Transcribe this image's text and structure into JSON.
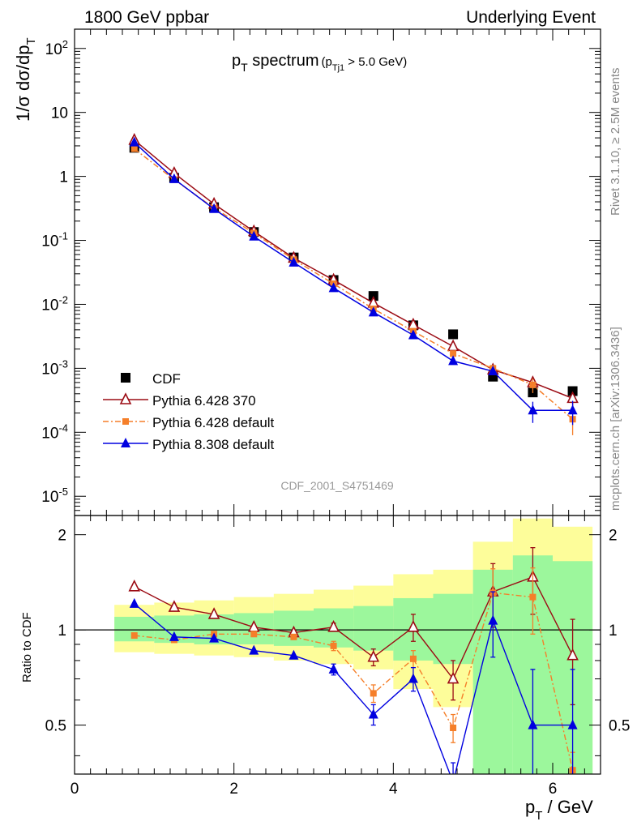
{
  "header": {
    "left": "1800 GeV ppbar",
    "right": "Underlying Event"
  },
  "side_labels": {
    "rivet": "Rivet 3.1.10, ≥ 2.5M events",
    "mcplots": "mcplots.cern.ch [arXiv:1306.3436]"
  },
  "analysis_id": "CDF_2001_S4751469",
  "title": {
    "main": "p",
    "main_sub": "T",
    "main_rest": " spectrum",
    "cut_open": "(p",
    "cut_sub": "Tj1",
    "cut_rest": " > 5.0 GeV)"
  },
  "axes": {
    "ylabel_top": "1/σ dσ/dp",
    "ylabel_top_sub": "T",
    "ylabel_bottom": "Ratio to CDF",
    "xlabel": "p",
    "xlabel_sub": "T",
    "xlabel_rest": " / GeV"
  },
  "colors": {
    "data": "#000000",
    "py6_370": "#9b0b14",
    "py6_default": "#f57f2a",
    "py8": "#0000e0",
    "band_inner": "#9cf79c",
    "band_outer": "#fdfd9a"
  },
  "chart_data": [
    {
      "type": "scatter",
      "yscale": "log",
      "xlim": [
        0,
        6.6
      ],
      "ylim": [
        5e-06,
        200
      ],
      "x_ticks": [
        "0",
        "2",
        "4",
        "6"
      ],
      "y_ticks": [
        "10^-5",
        "10^-4",
        "10^-3",
        "10^-2",
        "10^-1",
        "1",
        "10",
        "10^2"
      ],
      "x": [
        0.75,
        1.25,
        1.75,
        2.25,
        2.75,
        3.25,
        3.75,
        4.25,
        4.75,
        5.25,
        5.75,
        6.25
      ],
      "series": [
        {
          "name": "CDF",
          "marker": "square",
          "values": [
            2.8,
            0.95,
            0.33,
            0.135,
            0.054,
            0.024,
            0.0135,
            0.0047,
            0.0034,
            0.00074,
            0.00042,
            0.00044
          ]
        },
        {
          "name": "Pythia 6.428 370",
          "marker": "triangle-open",
          "values": [
            3.7,
            1.12,
            0.37,
            0.138,
            0.053,
            0.024,
            0.0105,
            0.0048,
            0.0022,
            0.00095,
            0.0006,
            0.00034
          ],
          "errors": [
            0,
            0,
            0,
            0,
            0,
            0,
            0,
            0,
            0,
            8e-05,
            0.0001,
            8e-05
          ]
        },
        {
          "name": "Pythia 6.428 default",
          "marker": "square-small",
          "values": [
            2.7,
            0.89,
            0.32,
            0.13,
            0.05,
            0.021,
            0.0085,
            0.0038,
            0.0017,
            0.001,
            0.00055,
            0.00016
          ],
          "errors": [
            0,
            0,
            0,
            0,
            0,
            0,
            0,
            0,
            0,
            0.00012,
            0.00014,
            7e-05
          ]
        },
        {
          "name": "Pythia 8.308 default",
          "marker": "triangle",
          "values": [
            3.4,
            0.91,
            0.31,
            0.115,
            0.045,
            0.018,
            0.0075,
            0.0033,
            0.0013,
            0.0009,
            0.00022,
            0.00022
          ],
          "errors": [
            0,
            0,
            0,
            0,
            0,
            0,
            0,
            0,
            0,
            0.00012,
            8e-05,
            9e-05
          ]
        }
      ]
    },
    {
      "type": "line",
      "ylim": [
        0.35,
        2.3
      ],
      "x_ticks": [
        "0",
        "2",
        "4",
        "6"
      ],
      "y_ticks": [
        "0.5",
        "1",
        "2"
      ],
      "x": [
        0.75,
        1.25,
        1.75,
        2.25,
        2.75,
        3.25,
        3.75,
        4.25,
        4.75,
        5.25,
        5.75,
        6.25
      ],
      "bands": {
        "bin_edges": [
          0.5,
          1.0,
          1.5,
          2.0,
          2.5,
          3.0,
          3.5,
          4.0,
          4.5,
          5.0,
          5.5,
          6.0,
          6.5
        ],
        "inner_lo": [
          0.92,
          0.91,
          0.9,
          0.9,
          0.89,
          0.88,
          0.86,
          0.8,
          0.78,
          0.35,
          0.35,
          0.35
        ],
        "inner_hi": [
          1.1,
          1.11,
          1.12,
          1.13,
          1.15,
          1.17,
          1.19,
          1.26,
          1.3,
          1.55,
          1.72,
          1.65
        ],
        "outer_lo": [
          0.85,
          0.84,
          0.83,
          0.82,
          0.8,
          0.78,
          0.75,
          0.65,
          0.57,
          0.55,
          0.35,
          0.35
        ],
        "outer_hi": [
          1.2,
          1.22,
          1.24,
          1.27,
          1.3,
          1.34,
          1.38,
          1.5,
          1.55,
          1.9,
          2.25,
          2.12
        ]
      },
      "series": [
        {
          "name": "Pythia 6.428 370",
          "values": [
            1.37,
            1.18,
            1.12,
            1.02,
            0.98,
            1.02,
            0.82,
            1.02,
            0.7,
            1.32,
            1.47,
            0.83
          ],
          "errors": [
            0,
            0,
            0,
            0,
            0,
            0.03,
            0.05,
            0.1,
            0.1,
            0.3,
            0.35,
            0.25
          ]
        },
        {
          "name": "Pythia 6.428 default",
          "values": [
            0.96,
            0.93,
            0.97,
            0.97,
            0.95,
            0.89,
            0.63,
            0.81,
            0.49,
            1.31,
            1.27,
            0.36
          ],
          "errors": [
            0,
            0,
            0,
            0,
            0,
            0.03,
            0.04,
            0.05,
            0.05,
            0.25,
            0.3,
            0.05
          ]
        },
        {
          "name": "Pythia 8.308 default",
          "values": [
            1.21,
            0.95,
            0.94,
            0.86,
            0.83,
            0.75,
            0.54,
            0.7,
            0.33,
            1.07,
            0.5,
            0.5
          ],
          "errors": [
            0,
            0,
            0,
            0,
            0,
            0.03,
            0.04,
            0.06,
            0.05,
            0.25,
            0.25,
            0.25
          ]
        }
      ]
    }
  ]
}
